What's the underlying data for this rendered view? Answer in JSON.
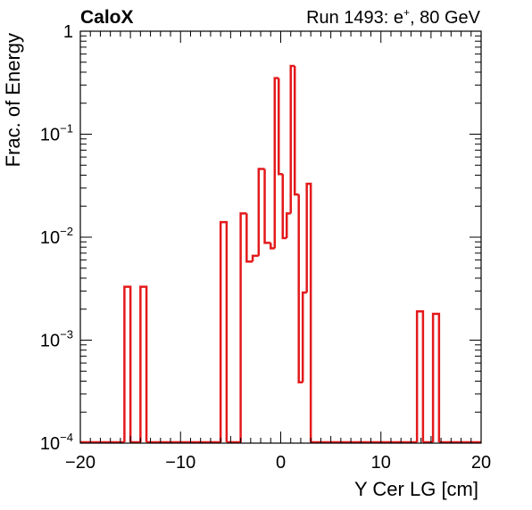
{
  "header": {
    "brand": "CaloX",
    "run_label": "Run 1493: e",
    "run_sup": "+",
    "run_suffix": ", 80 GeV"
  },
  "chart_data": {
    "type": "histogram",
    "xlabel": "Y Cer LG [cm]",
    "ylabel": "Frac. of Energy",
    "xlim": [
      -20,
      20
    ],
    "ylim": [
      0.0001,
      1
    ],
    "yscale": "log",
    "grid": false,
    "x_ticks": [
      "−20",
      "−10",
      "0",
      "10",
      "20"
    ],
    "x_tick_values": [
      -20,
      -10,
      0,
      10,
      20
    ],
    "y_ticks": [
      {
        "base": "1",
        "exp": "",
        "value": 1
      },
      {
        "base": "10",
        "exp": "−1",
        "value": 0.1
      },
      {
        "base": "10",
        "exp": "−2",
        "value": 0.01
      },
      {
        "base": "10",
        "exp": "−3",
        "value": 0.001
      },
      {
        "base": "10",
        "exp": "−4",
        "value": 0.0001
      }
    ],
    "line_color": "#e31a1c",
    "bins": [
      {
        "x0": -15.6,
        "x1": -15.0,
        "y": 0.0033
      },
      {
        "x0": -14.0,
        "x1": -13.4,
        "y": 0.0033
      },
      {
        "x0": -6.0,
        "x1": -5.4,
        "y": 0.014
      },
      {
        "x0": -4.0,
        "x1": -3.4,
        "y": 0.017
      },
      {
        "x0": -3.4,
        "x1": -2.8,
        "y": 0.0058
      },
      {
        "x0": -2.8,
        "x1": -2.2,
        "y": 0.0066
      },
      {
        "x0": -2.2,
        "x1": -1.6,
        "y": 0.046
      },
      {
        "x0": -1.6,
        "x1": -1.0,
        "y": 0.0088
      },
      {
        "x0": -1.0,
        "x1": -0.6,
        "y": 0.0078
      },
      {
        "x0": -0.6,
        "x1": -0.2,
        "y": 0.35
      },
      {
        "x0": -0.2,
        "x1": 0.2,
        "y": 0.041
      },
      {
        "x0": 0.2,
        "x1": 0.6,
        "y": 0.0098
      },
      {
        "x0": 0.6,
        "x1": 1.0,
        "y": 0.017
      },
      {
        "x0": 1.0,
        "x1": 1.4,
        "y": 0.46
      },
      {
        "x0": 1.4,
        "x1": 1.8,
        "y": 0.026
      },
      {
        "x0": 1.8,
        "x1": 2.2,
        "y": 0.00039
      },
      {
        "x0": 2.2,
        "x1": 2.6,
        "y": 0.0029
      },
      {
        "x0": 2.6,
        "x1": 3.0,
        "y": 0.033
      },
      {
        "x0": 13.6,
        "x1": 14.2,
        "y": 0.0019
      },
      {
        "x0": 15.2,
        "x1": 15.8,
        "y": 0.0018
      }
    ]
  }
}
